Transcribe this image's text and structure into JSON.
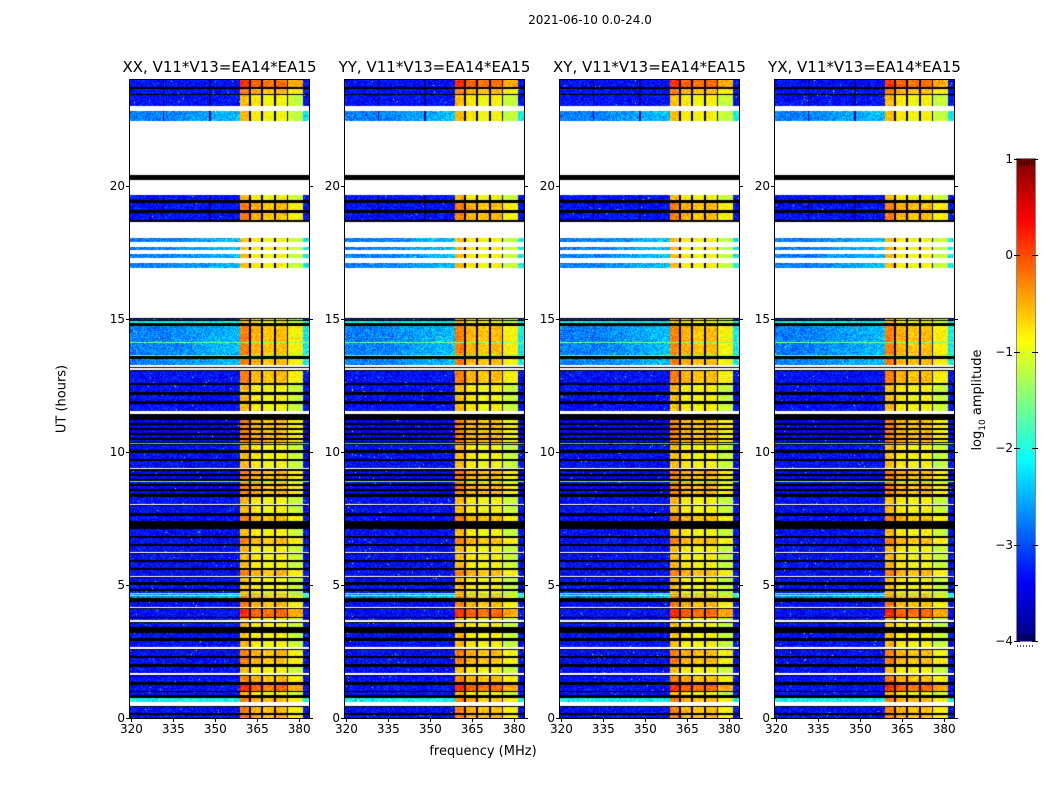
{
  "title": "2021-06-10 0.0-24.0",
  "axes": {
    "xlabel": "frequency (MHz)",
    "ylabel": "UT (hours)"
  },
  "colorbar": {
    "label_prefix": "log",
    "label_sub": "10",
    "label_suffix": " amplitude",
    "tick_labels": [
      "1",
      "0",
      "−1",
      "−2",
      "−3",
      "−4"
    ],
    "tick_values": [
      1,
      0,
      -1,
      -2,
      -3,
      -4
    ],
    "range": [
      -4,
      1
    ],
    "colormap": "jet",
    "border_color": "#888888"
  },
  "chart_data": {
    "type": "heatmap",
    "title": "2021-06-10 0.0-24.0",
    "panels": [
      {
        "id": "XX",
        "title": "XX, V11*V13=EA14*EA15"
      },
      {
        "id": "YY",
        "title": "YY, V11*V13=EA14*EA15"
      },
      {
        "id": "XY",
        "title": "XY, V11*V13=EA14*EA15"
      },
      {
        "id": "YX",
        "title": "YX, V11*V13=EA14*EA15"
      }
    ],
    "xlabel": "frequency (MHz)",
    "ylabel": "UT (hours)",
    "x_range_mhz": [
      319.5,
      383.5
    ],
    "x_ticks": [
      320,
      335,
      350,
      365,
      380
    ],
    "y_range_hours": [
      0,
      24
    ],
    "y_ticks": [
      0,
      5,
      10,
      15,
      20
    ],
    "color_scale": {
      "label": "log10 amplitude",
      "range": [
        -4,
        1
      ],
      "ticks": [
        1,
        0,
        -1,
        -2,
        -3,
        -4
      ],
      "colormap": "jet"
    },
    "rfi_band_mhz": [
      358.8,
      381.2
    ],
    "band_separators_mhz": [
      362.3,
      366.8,
      371.3,
      375.8
    ],
    "subband_level_offsets": [
      0.3,
      0.05,
      -0.05,
      0.0,
      -0.3
    ],
    "spw_boundary_mhz": [
      331.5,
      348.0
    ],
    "levels": {
      "data": -3.35,
      "light": -2.75,
      "cyan": -2.1,
      "striped": -3.45,
      "band": -0.85,
      "band_hot": -0.55,
      "band_red": -0.15
    },
    "hot_line_hours": [
      14.14,
      13.64,
      8.9,
      4.7,
      4.62
    ],
    "rows": [
      [
        0.0,
        0.14,
        "d",
        1
      ],
      [
        0.14,
        0.2,
        "b",
        0
      ],
      [
        0.2,
        0.44,
        "d",
        1
      ],
      [
        0.44,
        0.6,
        "w",
        0
      ],
      [
        0.6,
        0.78,
        "c",
        1
      ],
      [
        0.78,
        0.86,
        "b",
        0
      ],
      [
        0.86,
        1.02,
        "d",
        0
      ],
      [
        1.02,
        1.28,
        "d",
        2
      ],
      [
        1.28,
        1.36,
        "b",
        0
      ],
      [
        1.36,
        1.62,
        "d",
        1
      ],
      [
        1.62,
        1.68,
        "w",
        0
      ],
      [
        1.68,
        1.95,
        "d",
        0
      ],
      [
        1.95,
        2.02,
        "b",
        0
      ],
      [
        2.02,
        2.28,
        "d",
        1
      ],
      [
        2.28,
        2.34,
        "b",
        0
      ],
      [
        2.34,
        2.6,
        "d",
        1
      ],
      [
        2.6,
        2.66,
        "w",
        0
      ],
      [
        2.66,
        2.95,
        "d",
        0
      ],
      [
        2.95,
        3.02,
        "b",
        0
      ],
      [
        3.02,
        3.22,
        "d",
        0
      ],
      [
        3.22,
        3.42,
        "b",
        0
      ],
      [
        3.42,
        3.62,
        "d",
        0
      ],
      [
        3.62,
        3.68,
        "w",
        0
      ],
      [
        3.68,
        3.8,
        "d",
        0
      ],
      [
        3.8,
        4.12,
        "d",
        2
      ],
      [
        4.12,
        4.18,
        "w",
        0
      ],
      [
        4.18,
        4.42,
        "d",
        1
      ],
      [
        4.42,
        4.52,
        "b",
        0
      ],
      [
        4.52,
        4.72,
        "l",
        1
      ],
      [
        4.72,
        4.8,
        "d",
        0
      ],
      [
        4.8,
        4.86,
        "b",
        0
      ],
      [
        4.86,
        5.05,
        "d",
        0
      ],
      [
        5.05,
        5.12,
        "b",
        0
      ],
      [
        5.12,
        5.3,
        "d",
        0
      ],
      [
        5.3,
        5.36,
        "w",
        0
      ],
      [
        5.36,
        5.6,
        "d",
        1
      ],
      [
        5.6,
        5.66,
        "b",
        0
      ],
      [
        5.66,
        5.9,
        "d",
        0
      ],
      [
        5.9,
        5.96,
        "b",
        0
      ],
      [
        5.96,
        6.2,
        "d",
        0
      ],
      [
        6.2,
        6.26,
        "w",
        0
      ],
      [
        6.26,
        6.5,
        "d",
        0
      ],
      [
        6.5,
        6.56,
        "b",
        0
      ],
      [
        6.56,
        6.8,
        "d",
        1
      ],
      [
        6.8,
        6.86,
        "b",
        0
      ],
      [
        6.86,
        7.15,
        "d",
        0
      ],
      [
        7.15,
        7.4,
        "b",
        0
      ],
      [
        7.4,
        7.65,
        "d",
        1
      ],
      [
        7.65,
        7.72,
        "b",
        0
      ],
      [
        7.72,
        8.0,
        "d",
        0
      ],
      [
        8.0,
        8.06,
        "w",
        0
      ],
      [
        8.06,
        8.35,
        "d",
        0
      ],
      [
        8.35,
        9.35,
        "s",
        1
      ],
      [
        9.35,
        9.42,
        "w",
        0
      ],
      [
        9.42,
        9.7,
        "d",
        0
      ],
      [
        9.7,
        9.76,
        "b",
        0
      ],
      [
        9.76,
        10.02,
        "d",
        0
      ],
      [
        10.02,
        10.1,
        "b",
        0
      ],
      [
        10.1,
        10.3,
        "d",
        0
      ],
      [
        10.3,
        10.38,
        "c",
        0
      ],
      [
        10.38,
        11.28,
        "s",
        1
      ],
      [
        11.28,
        11.44,
        "b",
        0
      ],
      [
        11.44,
        11.56,
        "w",
        0
      ],
      [
        11.56,
        11.85,
        "d",
        0
      ],
      [
        11.85,
        11.92,
        "b",
        0
      ],
      [
        11.92,
        12.2,
        "d",
        0
      ],
      [
        12.2,
        12.28,
        "b",
        0
      ],
      [
        12.28,
        12.55,
        "d",
        0
      ],
      [
        12.55,
        12.62,
        "b",
        0
      ],
      [
        12.62,
        13.08,
        "d",
        1
      ],
      [
        13.08,
        13.15,
        "w",
        0
      ],
      [
        13.15,
        13.22,
        "d",
        0
      ],
      [
        13.22,
        13.28,
        "w",
        0
      ],
      [
        13.28,
        13.55,
        "l",
        1
      ],
      [
        13.55,
        13.62,
        "b",
        0
      ],
      [
        13.62,
        14.78,
        "l",
        1
      ],
      [
        14.78,
        14.86,
        "b",
        0
      ],
      [
        14.86,
        14.98,
        "c",
        0
      ],
      [
        14.98,
        15.06,
        "d",
        0
      ],
      [
        15.06,
        16.94,
        "w",
        0
      ],
      [
        16.94,
        17.1,
        "l",
        0
      ],
      [
        17.1,
        17.3,
        "w",
        0
      ],
      [
        17.3,
        17.44,
        "l",
        0
      ],
      [
        17.44,
        17.6,
        "w",
        0
      ],
      [
        17.6,
        17.72,
        "l",
        0
      ],
      [
        17.72,
        17.9,
        "w",
        0
      ],
      [
        17.9,
        18.04,
        "l",
        0
      ],
      [
        18.04,
        18.66,
        "w",
        0
      ],
      [
        18.66,
        18.72,
        "b",
        0
      ],
      [
        18.72,
        19.0,
        "d",
        1
      ],
      [
        19.0,
        19.1,
        "b",
        0
      ],
      [
        19.1,
        19.38,
        "d",
        1
      ],
      [
        19.38,
        19.48,
        "b",
        0
      ],
      [
        19.48,
        19.66,
        "d",
        0
      ],
      [
        19.66,
        20.22,
        "w",
        0
      ],
      [
        20.22,
        20.44,
        "b",
        0
      ],
      [
        20.44,
        22.44,
        "w",
        0
      ],
      [
        22.44,
        22.84,
        "l",
        0
      ],
      [
        22.84,
        23.04,
        "w",
        0
      ],
      [
        23.04,
        23.42,
        "d",
        0
      ],
      [
        23.42,
        23.48,
        "b",
        0
      ],
      [
        23.48,
        23.66,
        "d",
        1
      ],
      [
        23.66,
        23.72,
        "b",
        0
      ],
      [
        23.72,
        24.0,
        "d",
        2
      ]
    ]
  },
  "layout_colors": {
    "background": "#ffffff",
    "text": "#000000",
    "panel_border": "#000000"
  }
}
